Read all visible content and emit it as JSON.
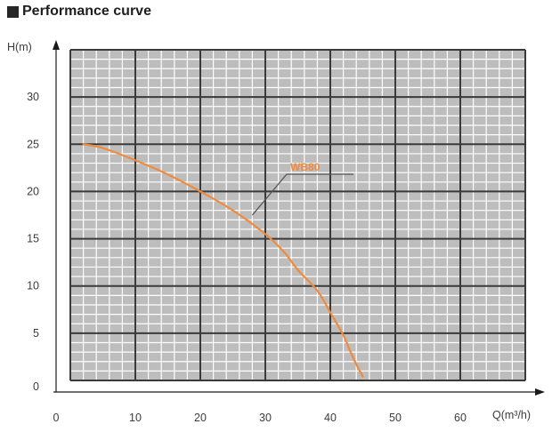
{
  "header": {
    "title": "Performance curve",
    "bullet_icon": "square-bullet-icon"
  },
  "chart_data": {
    "type": "line",
    "title": "Performance curve",
    "xlabel": "Q(m³/h)",
    "ylabel": "H(m)",
    "xlim": [
      0,
      70
    ],
    "ylim": [
      0,
      35
    ],
    "x_ticks": [
      0,
      10,
      20,
      30,
      40,
      50,
      60
    ],
    "y_ticks": [
      0,
      5,
      10,
      15,
      20,
      25,
      30
    ],
    "x_tick_labels": [
      "0",
      "10",
      "20",
      "30",
      "40",
      "50",
      "60"
    ],
    "y_tick_labels": [
      "0",
      "5",
      "10",
      "15",
      "20",
      "25",
      "30"
    ],
    "grid": true,
    "minor_grid": true,
    "colors": {
      "grid_bg": "#bdbdbd",
      "major_grid": "#3a3a3a",
      "minor_grid": "#ffffff",
      "series": "#f08a3c"
    },
    "series": [
      {
        "name": "WB80",
        "x": [
          2,
          5,
          10,
          15,
          20,
          25,
          30,
          33,
          35,
          38,
          40,
          42,
          43,
          44,
          45
        ],
        "y": [
          25,
          24.6,
          23.3,
          21.8,
          20,
          18,
          15.5,
          13.5,
          11.7,
          9.5,
          7.2,
          4.8,
          3.2,
          1.7,
          0.4
        ]
      }
    ]
  }
}
